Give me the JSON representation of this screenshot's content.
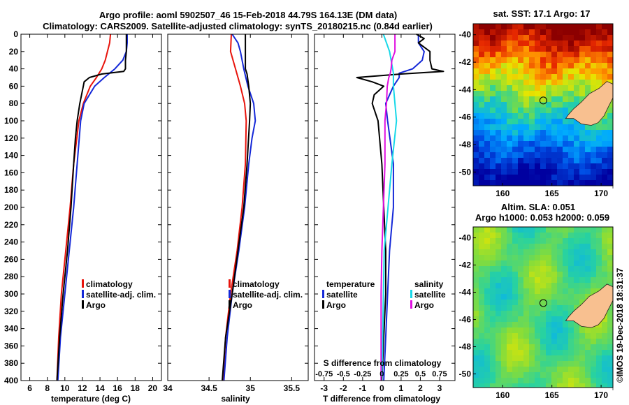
{
  "title_line1": "Argo profile: aoml 5902507_46 15-Feb-2018 44.79S 164.13E (DM data)",
  "title_line2": "Climatology: CARS2009. Satellite-adjusted climatology: synTS_20180215.nc (0.84d earlier)",
  "watermark": "©IMOS 19-Dec-2018 18:31:37",
  "colors": {
    "red": "#e8140c",
    "blue": "#1428d8",
    "black": "#000000",
    "cyan": "#18d8e8",
    "magenta": "#e010e0",
    "land": "#f8c090",
    "coast": "#202020"
  },
  "chart_data": [
    {
      "id": "temperature",
      "type": "line",
      "xlabel": "temperature (deg C)",
      "ylabel": "",
      "xlim": [
        5,
        21
      ],
      "ylim": [
        400,
        0
      ],
      "xticks": [
        6,
        8,
        10,
        12,
        14,
        16,
        18,
        20
      ],
      "yticks": [
        0,
        20,
        40,
        60,
        80,
        100,
        120,
        140,
        160,
        180,
        200,
        220,
        240,
        260,
        280,
        300,
        320,
        340,
        360,
        380,
        400
      ],
      "legend": [
        {
          "label": "climatology",
          "color": "red"
        },
        {
          "label": "satellite-adj. clim.",
          "color": "blue"
        },
        {
          "label": "Argo",
          "color": "black"
        }
      ],
      "series": [
        {
          "name": "climatology",
          "color": "red",
          "depth": [
            0,
            10,
            30,
            40,
            50,
            60,
            80,
            100,
            150,
            200,
            250,
            300,
            350,
            400
          ],
          "values": [
            15.2,
            15.1,
            14.6,
            14.2,
            13.6,
            12.9,
            12.1,
            11.6,
            11.0,
            10.6,
            10.1,
            9.6,
            9.3,
            9.1
          ]
        },
        {
          "name": "satellite-adj. clim.",
          "color": "blue",
          "depth": [
            0,
            10,
            20,
            30,
            40,
            50,
            60,
            80,
            100,
            150,
            200,
            250,
            300,
            350,
            400
          ],
          "values": [
            17.1,
            17.1,
            17.0,
            16.6,
            15.7,
            14.5,
            13.4,
            12.2,
            11.8,
            11.4,
            11.0,
            10.5,
            10.0,
            9.5,
            9.2
          ]
        },
        {
          "name": "Argo",
          "color": "black",
          "depth": [
            0,
            10,
            20,
            30,
            40,
            43,
            46,
            50,
            55,
            60,
            70,
            80,
            100,
            120,
            150,
            200,
            250,
            300,
            350,
            400
          ],
          "values": [
            17.0,
            17.0,
            17.0,
            16.9,
            16.9,
            16.7,
            14.2,
            12.8,
            12.2,
            12.1,
            11.9,
            11.7,
            11.4,
            11.2,
            11.0,
            10.7,
            10.3,
            9.8,
            9.4,
            9.1
          ]
        }
      ]
    },
    {
      "id": "salinity",
      "type": "line",
      "xlabel": "salinity",
      "ylabel": "",
      "xlim": [
        34,
        35.7
      ],
      "xticks": [
        34,
        34.5,
        35,
        35.5
      ],
      "legend": [
        {
          "label": "climatology",
          "color": "red"
        },
        {
          "label": "satellite-adj. clim.",
          "color": "blue"
        },
        {
          "label": "Argo",
          "color": "black"
        }
      ],
      "series": [
        {
          "name": "climatology",
          "color": "red",
          "depth": [
            0,
            20,
            40,
            60,
            80,
            100,
            150,
            200,
            250,
            300,
            350,
            400
          ],
          "values": [
            34.77,
            34.76,
            34.82,
            34.88,
            34.93,
            34.95,
            34.94,
            34.9,
            34.84,
            34.76,
            34.7,
            34.67
          ]
        },
        {
          "name": "satellite-adj. clim.",
          "color": "blue",
          "depth": [
            0,
            10,
            20,
            40,
            60,
            80,
            100,
            120,
            150,
            200,
            250,
            300,
            350,
            400
          ],
          "values": [
            34.78,
            34.85,
            34.88,
            34.92,
            34.97,
            35.04,
            35.06,
            35.02,
            34.98,
            34.93,
            34.86,
            34.78,
            34.72,
            34.68
          ]
        },
        {
          "name": "Argo",
          "color": "black",
          "depth": [
            0,
            20,
            30,
            40,
            43,
            46,
            60,
            80,
            100,
            150,
            200,
            250,
            300,
            350,
            400
          ],
          "values": [
            34.94,
            34.94,
            34.94,
            34.94,
            34.95,
            34.96,
            34.98,
            35.0,
            34.99,
            34.96,
            34.92,
            34.85,
            34.78,
            34.7,
            34.66
          ]
        }
      ]
    },
    {
      "id": "difference",
      "type": "line",
      "xlabel": "T difference from climatology",
      "xlabel_top": "S difference from climatology",
      "xlim": [
        -3.5,
        3.8
      ],
      "xticks": [
        -3,
        -2,
        -1,
        0,
        1,
        2,
        3
      ],
      "xticks_top": [
        -0.75,
        -0.5,
        -0.25,
        0,
        0.25,
        0.5,
        0.75
      ],
      "xticks_top_labels": [
        "-0.75",
        "-0.5",
        "-0.25",
        "0",
        "0.25",
        "0.5",
        "0.75"
      ],
      "legend_temperature": {
        "heading": "temperature",
        "items": [
          {
            "label": "satellite",
            "color": "blue"
          },
          {
            "label": "Argo",
            "color": "black"
          }
        ]
      },
      "legend_salinity": {
        "heading": "salinity",
        "items": [
          {
            "label": "satellite",
            "color": "cyan"
          },
          {
            "label": "Argo",
            "color": "magenta"
          }
        ]
      },
      "series": [
        {
          "name": "T satellite",
          "color": "blue",
          "depth": [
            0,
            10,
            20,
            30,
            40,
            45,
            50,
            60,
            80,
            100,
            150,
            200,
            250,
            300,
            350,
            400
          ],
          "values": [
            1.9,
            1.9,
            2.2,
            2.1,
            1.6,
            0.9,
            0.9,
            0.6,
            0.2,
            0.3,
            0.6,
            0.6,
            0.4,
            0.3,
            0.2,
            0.1
          ]
        },
        {
          "name": "T Argo",
          "color": "black",
          "depth": [
            0,
            5,
            10,
            20,
            30,
            40,
            43,
            46,
            50,
            55,
            60,
            70,
            80,
            100,
            150,
            200,
            250,
            300,
            350,
            400
          ],
          "values": [
            1.8,
            2.2,
            1.9,
            2.5,
            2.5,
            2.6,
            3.2,
            1.0,
            -1.3,
            -0.5,
            0.1,
            -0.4,
            -0.5,
            -0.2,
            0.0,
            0.1,
            0.2,
            0.2,
            0.1,
            0.0
          ]
        },
        {
          "name": "S satellite",
          "color": "cyan",
          "depth": [
            0,
            20,
            40,
            45,
            60,
            80,
            100,
            150,
            200,
            250,
            300,
            350,
            400
          ],
          "values": [
            0.02,
            0.1,
            0.14,
            0.15,
            0.15,
            0.17,
            0.19,
            0.13,
            0.08,
            0.03,
            0.02,
            0.01,
            0.0
          ]
        },
        {
          "name": "S Argo",
          "color": "magenta",
          "depth": [
            0,
            10,
            20,
            30,
            40,
            45,
            50,
            60,
            80,
            100,
            150,
            200,
            250,
            300,
            350,
            400
          ],
          "values": [
            0.17,
            0.17,
            0.17,
            0.13,
            0.12,
            0.11,
            0.09,
            0.07,
            0.06,
            0.04,
            0.04,
            0.02,
            0.0,
            -0.01,
            -0.01,
            -0.01
          ]
        }
      ]
    },
    {
      "id": "sst_map",
      "type": "heatmap",
      "title": "sat. SST: 17.1 Argo: 17",
      "xlim": [
        157,
        171.2
      ],
      "ylim": [
        -51,
        -39.2
      ],
      "xticks": [
        160,
        165,
        170
      ],
      "yticks": [
        -40,
        -42,
        -44,
        -46,
        -48,
        -50
      ],
      "argo_position": {
        "lon": 164.13,
        "lat": -44.79
      }
    },
    {
      "id": "sla_map",
      "type": "heatmap",
      "title_line1": "Altim. SLA: 0.051",
      "title_line2": "Argo h1000: 0.053 h2000: 0.059",
      "xlim": [
        157,
        171.2
      ],
      "ylim": [
        -51,
        -39.2
      ],
      "xticks": [
        160,
        165,
        170
      ],
      "yticks": [
        -40,
        -42,
        -44,
        -46,
        -48,
        -50
      ],
      "argo_position": {
        "lon": 164.13,
        "lat": -44.79
      }
    }
  ]
}
